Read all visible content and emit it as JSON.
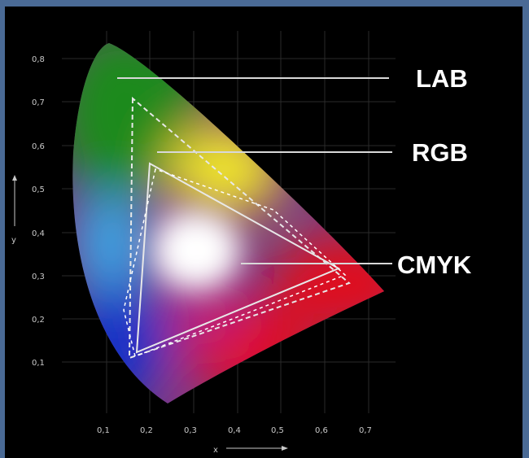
{
  "diagram": {
    "labels": {
      "lab": "LAB",
      "rgb": "RGB",
      "cmyk": "CMYK"
    },
    "axis": {
      "x_label": "x",
      "y_label": "y",
      "x_ticks": [
        "0,1",
        "0,2",
        "0,3",
        "0,4",
        "0,5",
        "0,6",
        "0,7"
      ],
      "y_ticks": [
        "0,8",
        "0,7",
        "0,6",
        "0,5",
        "0,4",
        "0,3",
        "0,2",
        "0,1"
      ]
    },
    "colors": {
      "background": "#000000",
      "frame": "#4a6a95",
      "green": "#1e8a1e",
      "yellow": "#f2e82a",
      "red": "#e0101a",
      "blue": "#1830c8",
      "cyan": "#38a8e8",
      "white_point": "#ffffff",
      "leader_line": "#d8d8d8"
    }
  }
}
